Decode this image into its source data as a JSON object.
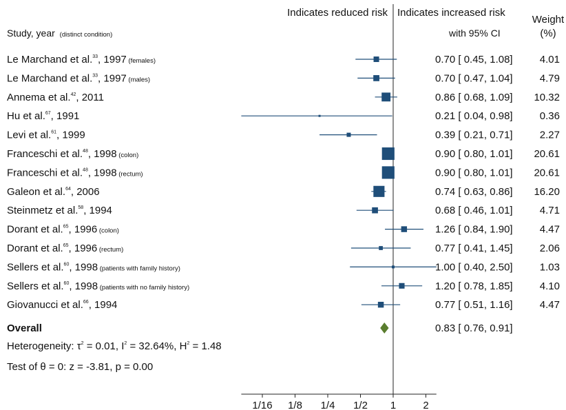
{
  "header": {
    "study_label": "Study, year",
    "study_note": "(distinct condition)",
    "reduced_risk": "Indicates reduced risk",
    "increased_risk": "Indicates increased risk",
    "ci_label": "with 95% CI",
    "weight_label": "Weight",
    "weight_unit": "(%)"
  },
  "chart_data": {
    "type": "forest",
    "x_scale": "log2",
    "x_ticks": [
      "1/16",
      "1/8",
      "1/4",
      "1/2",
      "1",
      "2"
    ],
    "x_tick_values": [
      0.0625,
      0.125,
      0.25,
      0.5,
      1,
      2
    ],
    "xlim": [
      0.04,
      2.5
    ],
    "reference_line": 1,
    "colors": {
      "marker": "#1f4e79",
      "overall": "#5a7d2e"
    },
    "studies": [
      {
        "author": "Le Marchand et al.",
        "ref": "33",
        "year": "1997",
        "condition": "(females)",
        "estimate": 0.7,
        "lower": 0.45,
        "upper": 1.08,
        "estimate_text": "0.70",
        "lower_text": "0.45",
        "upper_text": "1.08",
        "weight": "4.01"
      },
      {
        "author": "Le Marchand et al.",
        "ref": "33",
        "year": "1997",
        "condition": "(males)",
        "estimate": 0.7,
        "lower": 0.47,
        "upper": 1.04,
        "estimate_text": "0.70",
        "lower_text": "0.47",
        "upper_text": "1.04",
        "weight": "4.79"
      },
      {
        "author": "Annema et al.",
        "ref": "42",
        "year": "2011",
        "condition": "",
        "estimate": 0.86,
        "lower": 0.68,
        "upper": 1.09,
        "estimate_text": "0.86",
        "lower_text": "0.68",
        "upper_text": "1.09",
        "weight": "10.32"
      },
      {
        "author": "Hu et al.",
        "ref": "67",
        "year": "1991",
        "condition": "",
        "estimate": 0.21,
        "lower": 0.04,
        "upper": 0.98,
        "estimate_text": "0.21",
        "lower_text": "0.04",
        "upper_text": "0.98",
        "weight": "0.36"
      },
      {
        "author": "Levi et al.",
        "ref": "61",
        "year": "1999",
        "condition": "",
        "estimate": 0.39,
        "lower": 0.21,
        "upper": 0.71,
        "estimate_text": "0.39",
        "lower_text": "0.21",
        "upper_text": "0.71",
        "weight": "2.27"
      },
      {
        "author": "Franceschi et al.",
        "ref": "48",
        "year": "1998",
        "condition": "(colon)",
        "estimate": 0.9,
        "lower": 0.8,
        "upper": 1.01,
        "estimate_text": "0.90",
        "lower_text": "0.80",
        "upper_text": "1.01",
        "weight": "20.61"
      },
      {
        "author": "Franceschi et al.",
        "ref": "48",
        "year": "1998",
        "condition": "(rectum)",
        "estimate": 0.9,
        "lower": 0.8,
        "upper": 1.01,
        "estimate_text": "0.90",
        "lower_text": "0.80",
        "upper_text": "1.01",
        "weight": "20.61"
      },
      {
        "author": "Galeon et al.",
        "ref": "64",
        "year": "2006",
        "condition": "",
        "estimate": 0.74,
        "lower": 0.63,
        "upper": 0.86,
        "estimate_text": "0.74",
        "lower_text": "0.63",
        "upper_text": "0.86",
        "weight": "16.20"
      },
      {
        "author": "Steinmetz et al.",
        "ref": "58",
        "year": "1994",
        "condition": "",
        "estimate": 0.68,
        "lower": 0.46,
        "upper": 1.01,
        "estimate_text": "0.68",
        "lower_text": "0.46",
        "upper_text": "1.01",
        "weight": "4.71"
      },
      {
        "author": "Dorant et al.",
        "ref": "65",
        "year": "1996",
        "condition": "(colon)",
        "estimate": 1.26,
        "lower": 0.84,
        "upper": 1.9,
        "estimate_text": "1.26",
        "lower_text": "0.84",
        "upper_text": "1.90",
        "weight": "4.47"
      },
      {
        "author": "Dorant et al.",
        "ref": "65",
        "year": "1996",
        "condition": "(rectum)",
        "estimate": 0.77,
        "lower": 0.41,
        "upper": 1.45,
        "estimate_text": "0.77",
        "lower_text": "0.41",
        "upper_text": "1.45",
        "weight": "2.06"
      },
      {
        "author": "Sellers et al.",
        "ref": "60",
        "year": "1998",
        "condition": "(patients with family history)",
        "estimate": 1.0,
        "lower": 0.4,
        "upper": 2.5,
        "estimate_text": "1.00",
        "lower_text": "0.40",
        "upper_text": "2.50",
        "weight": "1.03"
      },
      {
        "author": "Sellers et al.",
        "ref": "60",
        "year": "1998",
        "condition": "(patients with no family history)",
        "estimate": 1.2,
        "lower": 0.78,
        "upper": 1.85,
        "estimate_text": "1.20",
        "lower_text": "0.78",
        "upper_text": "1.85",
        "weight": "4.10"
      },
      {
        "author": "Giovanucci et al.",
        "ref": "66",
        "year": "1994",
        "condition": "",
        "estimate": 0.77,
        "lower": 0.51,
        "upper": 1.16,
        "estimate_text": "0.77",
        "lower_text": "0.51",
        "upper_text": "1.16",
        "weight": "4.47"
      }
    ],
    "overall": {
      "label": "Overall",
      "estimate": 0.83,
      "lower": 0.76,
      "upper": 0.91,
      "estimate_text": "0.83",
      "lower_text": "0.76",
      "upper_text": "0.91"
    }
  },
  "footer": {
    "heterogeneity_label": "Heterogeneity: ",
    "heterogeneity_tau_symbol": "τ",
    "heterogeneity_tau": " = 0.01, ",
    "heterogeneity_i_symbol": "I",
    "heterogeneity_i": " = 32.64%, ",
    "heterogeneity_h_symbol": "H",
    "heterogeneity_h": " = 1.48",
    "superscript_2": "2",
    "test_line": "Test of θ = 0: z = -3.81, p = 0.00"
  }
}
